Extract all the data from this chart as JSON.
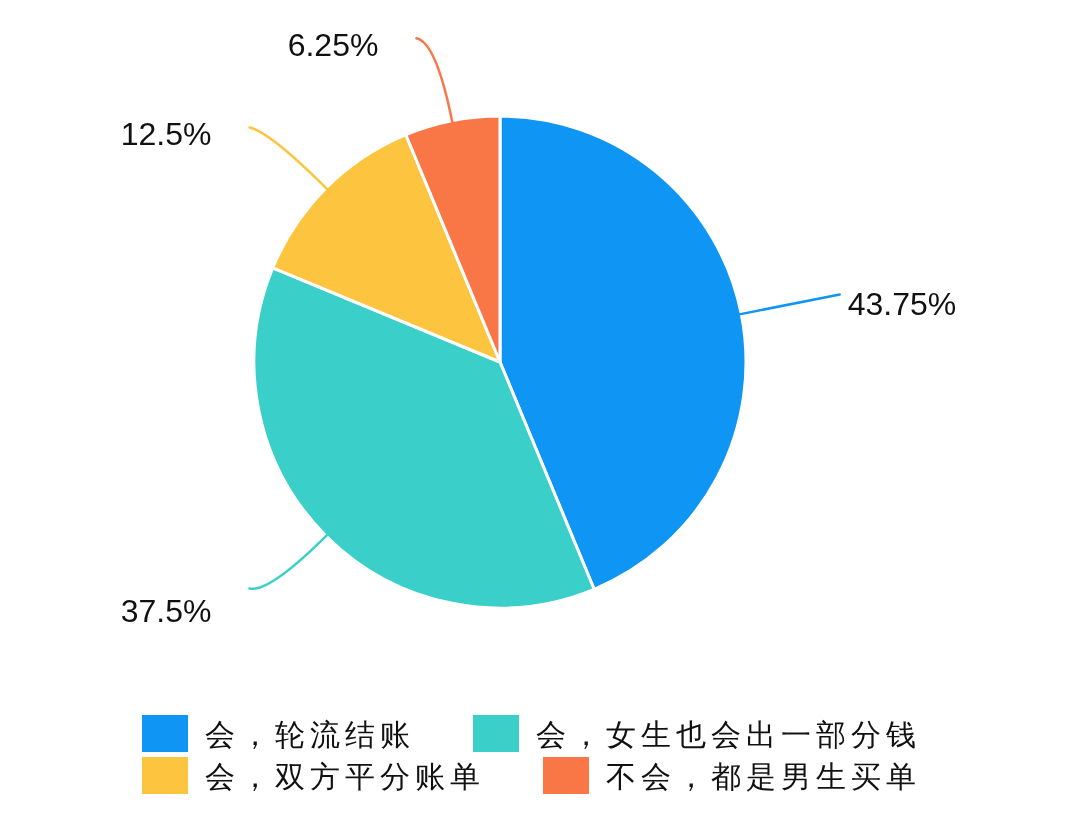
{
  "chart_data": {
    "type": "pie",
    "categories": [
      "会，轮流结账",
      "会，女生也会出一部分钱",
      "会，双方平分账单",
      "不会，都是男生买单"
    ],
    "values": [
      43.75,
      37.5,
      12.5,
      6.25
    ],
    "colors": [
      "#0f96f4",
      "#3acfc9",
      "#fdc53f",
      "#f97747"
    ],
    "value_labels": [
      "43.75%",
      "37.5%",
      "12.5%",
      "6.25%"
    ],
    "legend": "bottom"
  }
}
